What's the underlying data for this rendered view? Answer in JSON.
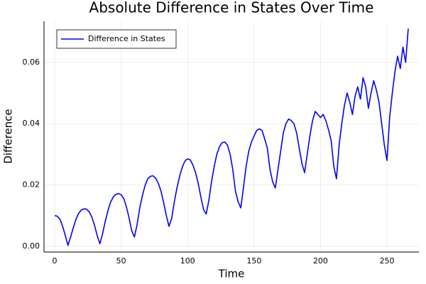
{
  "chart_data": {
    "type": "line",
    "title": "Absolute Difference in States Over Time",
    "xlabel": "Time",
    "ylabel": "Difference",
    "x": [
      0,
      2,
      4,
      6,
      8,
      10,
      12,
      14,
      16,
      18,
      20,
      22,
      24,
      26,
      28,
      30,
      32,
      34,
      36,
      38,
      40,
      42,
      44,
      46,
      48,
      50,
      52,
      54,
      56,
      58,
      60,
      62,
      64,
      66,
      68,
      70,
      72,
      74,
      76,
      78,
      80,
      82,
      84,
      86,
      88,
      90,
      92,
      94,
      96,
      98,
      100,
      102,
      104,
      106,
      108,
      110,
      112,
      114,
      116,
      118,
      120,
      122,
      124,
      126,
      128,
      130,
      132,
      134,
      136,
      138,
      140,
      142,
      144,
      146,
      148,
      150,
      152,
      154,
      156,
      158,
      160,
      162,
      164,
      166,
      168,
      170,
      172,
      174,
      176,
      178,
      180,
      182,
      184,
      186,
      188,
      190,
      192,
      194,
      196,
      198,
      200,
      202,
      204,
      206,
      208,
      210,
      212,
      214,
      216,
      218,
      220,
      222,
      224,
      226,
      228,
      230,
      232,
      234,
      236,
      238,
      240,
      242,
      244,
      246,
      248,
      250,
      252,
      254,
      256,
      258,
      260,
      262,
      264,
      266
    ],
    "series": [
      {
        "name": "Difference in States",
        "color": "#0000ff",
        "values": [
          0.01,
          0.0098,
          0.0088,
          0.0065,
          0.0035,
          0.0003,
          0.003,
          0.006,
          0.0088,
          0.0107,
          0.0118,
          0.0122,
          0.0121,
          0.0112,
          0.0095,
          0.0068,
          0.0035,
          0.0008,
          0.004,
          0.008,
          0.0115,
          0.0143,
          0.016,
          0.0169,
          0.0172,
          0.0168,
          0.0155,
          0.0128,
          0.0092,
          0.005,
          0.003,
          0.007,
          0.0125,
          0.0165,
          0.0198,
          0.022,
          0.0228,
          0.023,
          0.0222,
          0.0205,
          0.018,
          0.0142,
          0.01,
          0.0065,
          0.009,
          0.0145,
          0.019,
          0.0228,
          0.0258,
          0.0278,
          0.0285,
          0.0282,
          0.0265,
          0.024,
          0.0205,
          0.016,
          0.012,
          0.0105,
          0.015,
          0.021,
          0.026,
          0.03,
          0.0325,
          0.0338,
          0.034,
          0.033,
          0.03,
          0.025,
          0.018,
          0.0145,
          0.0125,
          0.019,
          0.026,
          0.031,
          0.034,
          0.036,
          0.0378,
          0.0383,
          0.0378,
          0.035,
          0.032,
          0.025,
          0.021,
          0.019,
          0.025,
          0.031,
          0.037,
          0.04,
          0.0415,
          0.041,
          0.04,
          0.037,
          0.032,
          0.027,
          0.024,
          0.03,
          0.036,
          0.041,
          0.044,
          0.043,
          0.042,
          0.043,
          0.041,
          0.038,
          0.0345,
          0.026,
          0.022,
          0.033,
          0.04,
          0.046,
          0.05,
          0.047,
          0.043,
          0.049,
          0.052,
          0.048,
          0.055,
          0.052,
          0.045,
          0.05,
          0.054,
          0.051,
          0.047,
          0.04,
          0.033,
          0.028,
          0.042,
          0.05,
          0.057,
          0.062,
          0.058,
          0.065,
          0.06,
          0.071
        ]
      }
    ],
    "xlim": [
      -8,
      274
    ],
    "ylim": [
      -0.0019,
      0.0734
    ],
    "xticks": [
      0,
      50,
      100,
      150,
      200,
      250
    ],
    "yticks": [
      {
        "value": 0,
        "label": "0.00"
      },
      0.02,
      0.04,
      0.06
    ],
    "grid": true,
    "legend": "top-left"
  }
}
